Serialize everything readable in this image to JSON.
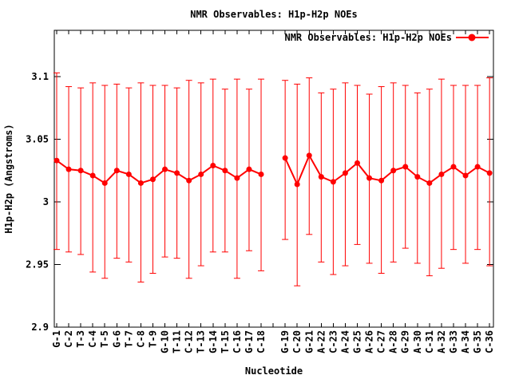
{
  "figure": {
    "background": "#ffffff",
    "border_color": "#000000",
    "text_color": "#000000"
  },
  "chart_data": {
    "type": "line",
    "title": "NMR Observables: H1p-H2p NOEs",
    "xlabel": "Nucleotide",
    "ylabel": "H1p-H2p (Angstroms)",
    "series_color": "#ff0000",
    "error_bars": true,
    "grid": false,
    "marker": "filled-circle",
    "legend": {
      "label": "NMR Observables: H1p-H2p NOEs",
      "position": "top-right-inside",
      "color": "#ff0000"
    },
    "axis": {
      "ymin": 2.9,
      "ylim": [
        2.9,
        3.137
      ],
      "yticks": [
        2.9,
        2.95,
        3.0,
        3.05,
        3.1
      ],
      "ytick_labels": [
        "2.9",
        "2.95",
        "3",
        "3.05",
        "3.1"
      ],
      "x_slots": 37,
      "note": "two strands of 18 nucleotides separated by one empty slot (index 18)"
    },
    "segments": [
      {
        "name": "strand-1",
        "points": [
          {
            "label": "G-1",
            "slot": 0,
            "y": 3.033,
            "y_low": 2.962,
            "y_high": 3.103
          },
          {
            "label": "C-2",
            "slot": 1,
            "y": 3.026,
            "y_low": 2.96,
            "y_high": 3.092
          },
          {
            "label": "T-3",
            "slot": 2,
            "y": 3.025,
            "y_low": 2.958,
            "y_high": 3.091
          },
          {
            "label": "C-4",
            "slot": 3,
            "y": 3.021,
            "y_low": 2.944,
            "y_high": 3.095
          },
          {
            "label": "T-5",
            "slot": 4,
            "y": 3.015,
            "y_low": 2.939,
            "y_high": 3.093
          },
          {
            "label": "G-6",
            "slot": 5,
            "y": 3.025,
            "y_low": 2.955,
            "y_high": 3.094
          },
          {
            "label": "T-7",
            "slot": 6,
            "y": 3.022,
            "y_low": 2.952,
            "y_high": 3.091
          },
          {
            "label": "C-8",
            "slot": 7,
            "y": 3.015,
            "y_low": 2.936,
            "y_high": 3.095
          },
          {
            "label": "T-9",
            "slot": 8,
            "y": 3.018,
            "y_low": 2.943,
            "y_high": 3.093
          },
          {
            "label": "G-10",
            "slot": 9,
            "y": 3.026,
            "y_low": 2.956,
            "y_high": 3.093
          },
          {
            "label": "T-11",
            "slot": 10,
            "y": 3.023,
            "y_low": 2.955,
            "y_high": 3.091
          },
          {
            "label": "C-12",
            "slot": 11,
            "y": 3.017,
            "y_low": 2.939,
            "y_high": 3.097
          },
          {
            "label": "T-13",
            "slot": 12,
            "y": 3.022,
            "y_low": 2.949,
            "y_high": 3.095
          },
          {
            "label": "G-14",
            "slot": 13,
            "y": 3.029,
            "y_low": 2.96,
            "y_high": 3.098
          },
          {
            "label": "T-15",
            "slot": 14,
            "y": 3.025,
            "y_low": 2.96,
            "y_high": 3.09
          },
          {
            "label": "C-16",
            "slot": 15,
            "y": 3.019,
            "y_low": 2.939,
            "y_high": 3.098
          },
          {
            "label": "G-17",
            "slot": 16,
            "y": 3.026,
            "y_low": 2.961,
            "y_high": 3.09
          },
          {
            "label": "C-18",
            "slot": 17,
            "y": 3.022,
            "y_low": 2.945,
            "y_high": 3.098
          }
        ]
      },
      {
        "name": "strand-2",
        "points": [
          {
            "label": "G-19",
            "slot": 19,
            "y": 3.035,
            "y_low": 2.97,
            "y_high": 3.097
          },
          {
            "label": "C-20",
            "slot": 20,
            "y": 3.014,
            "y_low": 2.933,
            "y_high": 3.094
          },
          {
            "label": "G-21",
            "slot": 21,
            "y": 3.037,
            "y_low": 2.974,
            "y_high": 3.099
          },
          {
            "label": "A-22",
            "slot": 22,
            "y": 3.02,
            "y_low": 2.952,
            "y_high": 3.087
          },
          {
            "label": "C-23",
            "slot": 23,
            "y": 3.016,
            "y_low": 2.942,
            "y_high": 3.09
          },
          {
            "label": "A-24",
            "slot": 24,
            "y": 3.023,
            "y_low": 2.949,
            "y_high": 3.095
          },
          {
            "label": "G-25",
            "slot": 25,
            "y": 3.031,
            "y_low": 2.966,
            "y_high": 3.093
          },
          {
            "label": "A-26",
            "slot": 26,
            "y": 3.019,
            "y_low": 2.951,
            "y_high": 3.086
          },
          {
            "label": "C-27",
            "slot": 27,
            "y": 3.017,
            "y_low": 2.943,
            "y_high": 3.092
          },
          {
            "label": "A-28",
            "slot": 28,
            "y": 3.025,
            "y_low": 2.952,
            "y_high": 3.095
          },
          {
            "label": "G-29",
            "slot": 29,
            "y": 3.028,
            "y_low": 2.963,
            "y_high": 3.093
          },
          {
            "label": "A-30",
            "slot": 30,
            "y": 3.02,
            "y_low": 2.951,
            "y_high": 3.087
          },
          {
            "label": "C-31",
            "slot": 31,
            "y": 3.015,
            "y_low": 2.941,
            "y_high": 3.09
          },
          {
            "label": "A-32",
            "slot": 32,
            "y": 3.022,
            "y_low": 2.947,
            "y_high": 3.098
          },
          {
            "label": "G-33",
            "slot": 33,
            "y": 3.028,
            "y_low": 2.962,
            "y_high": 3.093
          },
          {
            "label": "A-34",
            "slot": 34,
            "y": 3.021,
            "y_low": 2.951,
            "y_high": 3.093
          },
          {
            "label": "G-35",
            "slot": 35,
            "y": 3.028,
            "y_low": 2.962,
            "y_high": 3.093
          },
          {
            "label": "C-36",
            "slot": 36,
            "y": 3.023,
            "y_low": 2.949,
            "y_high": 3.099
          }
        ]
      }
    ]
  }
}
